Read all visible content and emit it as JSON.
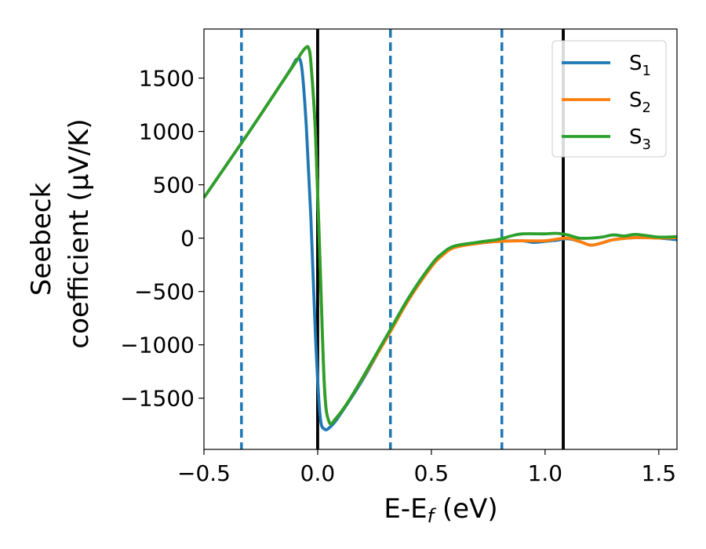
{
  "chart_data": {
    "type": "line",
    "xlabel_main": "E-E",
    "xlabel_sub": "f",
    "xlabel_unit": " (eV)",
    "ylabel_line1": "Seebeck",
    "ylabel_line2": "coefficient  (μV/K)",
    "xlim": [
      -0.5,
      1.58
    ],
    "ylim": [
      -1980,
      1960
    ],
    "xticks": [
      -0.5,
      0.0,
      0.5,
      1.0,
      1.5
    ],
    "xtick_labels": [
      "−0.5",
      "0.0",
      "0.5",
      "1.0",
      "1.5"
    ],
    "yticks": [
      1500,
      1000,
      500,
      0,
      -500,
      -1000,
      -1500
    ],
    "ytick_labels": [
      "1500",
      "1000",
      "500",
      "0",
      "−500",
      "−1000",
      "−1500"
    ],
    "grid": false,
    "legend_position": "top-right",
    "vlines_solid": [
      0.0,
      1.08
    ],
    "vlines_dashed": [
      -0.335,
      0.32,
      0.81
    ],
    "colors": {
      "S1": "#1f77b4",
      "S2": "#ff7f0e",
      "S3": "#2ca02c",
      "solid_vline": "#000000",
      "dashed_vline": "#1f77b4"
    },
    "series": [
      {
        "name": "S",
        "sub": "1",
        "color": "#1f77b4",
        "points": [
          [
            -0.5,
            380
          ],
          [
            -0.4,
            690
          ],
          [
            -0.3,
            1000
          ],
          [
            -0.2,
            1320
          ],
          [
            -0.12,
            1580
          ],
          [
            -0.09,
            1680
          ],
          [
            -0.07,
            1600
          ],
          [
            -0.05,
            1050
          ],
          [
            -0.03,
            200
          ],
          [
            -0.01,
            -900
          ],
          [
            0.01,
            -1650
          ],
          [
            0.03,
            -1790
          ],
          [
            0.06,
            -1760
          ],
          [
            0.1,
            -1650
          ],
          [
            0.2,
            -1320
          ],
          [
            0.3,
            -940
          ],
          [
            0.4,
            -560
          ],
          [
            0.5,
            -250
          ],
          [
            0.55,
            -140
          ],
          [
            0.6,
            -80
          ],
          [
            0.7,
            -50
          ],
          [
            0.8,
            -30
          ],
          [
            0.9,
            -25
          ],
          [
            0.95,
            -40
          ],
          [
            1.0,
            -30
          ],
          [
            1.05,
            -20
          ],
          [
            1.1,
            -5
          ],
          [
            1.15,
            -30
          ],
          [
            1.2,
            -65
          ],
          [
            1.25,
            -45
          ],
          [
            1.3,
            -15
          ],
          [
            1.4,
            5
          ],
          [
            1.5,
            0
          ],
          [
            1.58,
            -15
          ]
        ]
      },
      {
        "name": "S",
        "sub": "2",
        "color": "#ff7f0e",
        "points": [
          [
            -0.5,
            380
          ],
          [
            -0.4,
            690
          ],
          [
            -0.3,
            1000
          ],
          [
            -0.2,
            1320
          ],
          [
            -0.1,
            1640
          ],
          [
            -0.07,
            1740
          ],
          [
            -0.05,
            1790
          ],
          [
            -0.04,
            1780
          ],
          [
            -0.03,
            1650
          ],
          [
            -0.01,
            1000
          ],
          [
            0.01,
            -200
          ],
          [
            0.03,
            -1400
          ],
          [
            0.05,
            -1720
          ],
          [
            0.08,
            -1690
          ],
          [
            0.15,
            -1480
          ],
          [
            0.3,
            -950
          ],
          [
            0.4,
            -580
          ],
          [
            0.5,
            -270
          ],
          [
            0.55,
            -160
          ],
          [
            0.6,
            -90
          ],
          [
            0.7,
            -50
          ],
          [
            0.8,
            -30
          ],
          [
            0.9,
            -25
          ],
          [
            1.0,
            -25
          ],
          [
            1.05,
            -10
          ],
          [
            1.1,
            0
          ],
          [
            1.15,
            -30
          ],
          [
            1.2,
            -65
          ],
          [
            1.25,
            -45
          ],
          [
            1.3,
            -15
          ],
          [
            1.4,
            5
          ],
          [
            1.5,
            0
          ],
          [
            1.58,
            5
          ]
        ]
      },
      {
        "name": "S",
        "sub": "3",
        "color": "#2ca02c",
        "points": [
          [
            -0.5,
            380
          ],
          [
            -0.4,
            690
          ],
          [
            -0.3,
            1000
          ],
          [
            -0.2,
            1320
          ],
          [
            -0.1,
            1640
          ],
          [
            -0.07,
            1740
          ],
          [
            -0.05,
            1790
          ],
          [
            -0.04,
            1780
          ],
          [
            -0.03,
            1650
          ],
          [
            -0.01,
            1000
          ],
          [
            0.01,
            -200
          ],
          [
            0.03,
            -1400
          ],
          [
            0.05,
            -1720
          ],
          [
            0.08,
            -1690
          ],
          [
            0.15,
            -1480
          ],
          [
            0.3,
            -930
          ],
          [
            0.4,
            -560
          ],
          [
            0.5,
            -250
          ],
          [
            0.55,
            -140
          ],
          [
            0.6,
            -75
          ],
          [
            0.7,
            -40
          ],
          [
            0.8,
            -10
          ],
          [
            0.85,
            20
          ],
          [
            0.9,
            40
          ],
          [
            1.0,
            40
          ],
          [
            1.05,
            45
          ],
          [
            1.1,
            30
          ],
          [
            1.15,
            0
          ],
          [
            1.2,
            0
          ],
          [
            1.25,
            10
          ],
          [
            1.3,
            30
          ],
          [
            1.35,
            20
          ],
          [
            1.4,
            35
          ],
          [
            1.5,
            10
          ],
          [
            1.58,
            15
          ]
        ]
      }
    ]
  }
}
